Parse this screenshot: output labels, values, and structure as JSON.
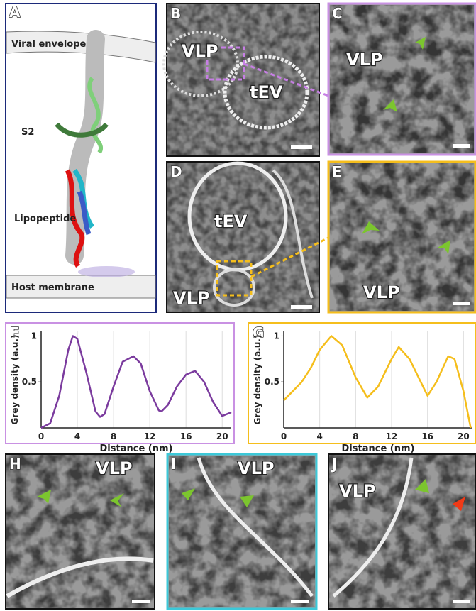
{
  "panels": {
    "A": {
      "label": "A",
      "texts": [
        "Viral envelope",
        "S2",
        "Lipopeptide",
        "Host membrane"
      ]
    },
    "B": {
      "label": "B",
      "texts": [
        "VLP",
        "tEV"
      ]
    },
    "C": {
      "label": "C",
      "texts": [
        "VLP"
      ]
    },
    "D": {
      "label": "D",
      "texts": [
        "tEV",
        "VLP"
      ]
    },
    "E": {
      "label": "E",
      "texts": [
        "VLP"
      ]
    },
    "H": {
      "label": "H",
      "texts": [
        "VLP"
      ]
    },
    "I": {
      "label": "I",
      "texts": [
        "VLP"
      ]
    },
    "J": {
      "label": "J",
      "texts": [
        "VLP"
      ]
    }
  },
  "chart_data": [
    {
      "type": "line",
      "label": "F",
      "x_label": "Distance (nm)",
      "y_label": "Grey density (a.u.)",
      "x": [
        0,
        1,
        2,
        3,
        3.5,
        4,
        5,
        6,
        6.5,
        7,
        8,
        9,
        10.2,
        11,
        12,
        13,
        13.3,
        14,
        15,
        16,
        17,
        18,
        19,
        20,
        21
      ],
      "values": [
        0,
        0.05,
        0.35,
        0.85,
        1.0,
        0.97,
        0.6,
        0.18,
        0.12,
        0.15,
        0.45,
        0.72,
        0.78,
        0.7,
        0.4,
        0.19,
        0.18,
        0.25,
        0.45,
        0.58,
        0.62,
        0.5,
        0.28,
        0.13,
        0.17
      ],
      "color": "#7b3b9e",
      "border": "#c991e3",
      "xlim": [
        0,
        21
      ],
      "ylim": [
        0,
        1.05
      ],
      "xticks": [
        0,
        4,
        8,
        12,
        16,
        20
      ],
      "yticks": [
        0.5,
        1
      ],
      "grid": true
    },
    {
      "type": "line",
      "label": "G",
      "x_label": "Distance (nm)",
      "y_label": "Grey density (a.u.)",
      "x": [
        0,
        1,
        2,
        3,
        4,
        5.3,
        6.5,
        8,
        9.3,
        10.5,
        12,
        12.8,
        14,
        15.5,
        16,
        17,
        18.3,
        19,
        20,
        20.8
      ],
      "values": [
        0.3,
        0.4,
        0.5,
        0.65,
        0.85,
        1.0,
        0.9,
        0.55,
        0.33,
        0.45,
        0.75,
        0.88,
        0.75,
        0.45,
        0.35,
        0.5,
        0.78,
        0.75,
        0.4,
        0
      ],
      "color": "#f5be1c",
      "border": "#f5be1c",
      "xlim": [
        0,
        21
      ],
      "ylim": [
        0,
        1.05
      ],
      "xticks": [
        0,
        4,
        8,
        12,
        16,
        20
      ],
      "yticks": [
        0.5,
        1
      ],
      "grid": true
    }
  ]
}
